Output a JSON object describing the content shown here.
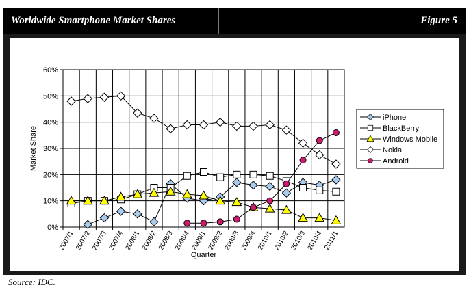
{
  "header": {
    "title": "Worldwide Smartphone Market Shares",
    "figure_label": "Figure 5"
  },
  "footer": {
    "source": "Source: IDC."
  },
  "chart_data": {
    "type": "line",
    "title": "Worldwide Smartphone Market Shares",
    "xlabel": "Quarter",
    "ylabel": "Market Share",
    "ylim": [
      0,
      60
    ],
    "yticks": [
      "0%",
      "10%",
      "20%",
      "30%",
      "40%",
      "50%",
      "60%"
    ],
    "categories": [
      "2007/1",
      "2007/2",
      "2007/3",
      "2007/4",
      "2008/1",
      "2008/2",
      "2008/3",
      "2008/4",
      "2009/1",
      "2009/2",
      "2009/3",
      "2009/4",
      "2010/1",
      "2010/2",
      "2010/3",
      "2010/4",
      "2011/1"
    ],
    "grid": true,
    "legend_position": "right",
    "series": [
      {
        "name": "iPhone",
        "color": "#a9cbee",
        "marker": "diamond",
        "values": [
          null,
          1,
          3.5,
          6,
          5,
          2,
          16.5,
          11,
          10,
          11.5,
          17,
          16,
          15.5,
          13,
          17,
          16,
          18
        ]
      },
      {
        "name": "BlackBerry",
        "color": "#ffffff",
        "marker": "square",
        "values": [
          9,
          10,
          10,
          10.5,
          12.5,
          15,
          15,
          19.5,
          21,
          19,
          20,
          20,
          19.5,
          17.5,
          15,
          14,
          13.5
        ]
      },
      {
        "name": "Windows Mobile",
        "color": "#ffff00",
        "marker": "triangle",
        "values": [
          10,
          10,
          10,
          11.5,
          12.5,
          13,
          13.5,
          12.5,
          12,
          10,
          9.5,
          7.5,
          7,
          6.5,
          3.5,
          3.5,
          2.5
        ]
      },
      {
        "name": "Nokia",
        "color": "#ffffff",
        "marker": "diamond",
        "values": [
          48,
          49,
          49.5,
          50,
          43.5,
          41.5,
          37.5,
          39,
          39,
          40,
          38.5,
          38.5,
          39,
          37,
          32,
          27.5,
          24
        ]
      },
      {
        "name": "Android",
        "color": "#cc1b6f",
        "marker": "circle",
        "values": [
          null,
          null,
          null,
          null,
          null,
          null,
          null,
          1.5,
          1.5,
          2,
          3,
          7.5,
          10,
          16.5,
          25.5,
          33,
          36
        ]
      }
    ]
  }
}
